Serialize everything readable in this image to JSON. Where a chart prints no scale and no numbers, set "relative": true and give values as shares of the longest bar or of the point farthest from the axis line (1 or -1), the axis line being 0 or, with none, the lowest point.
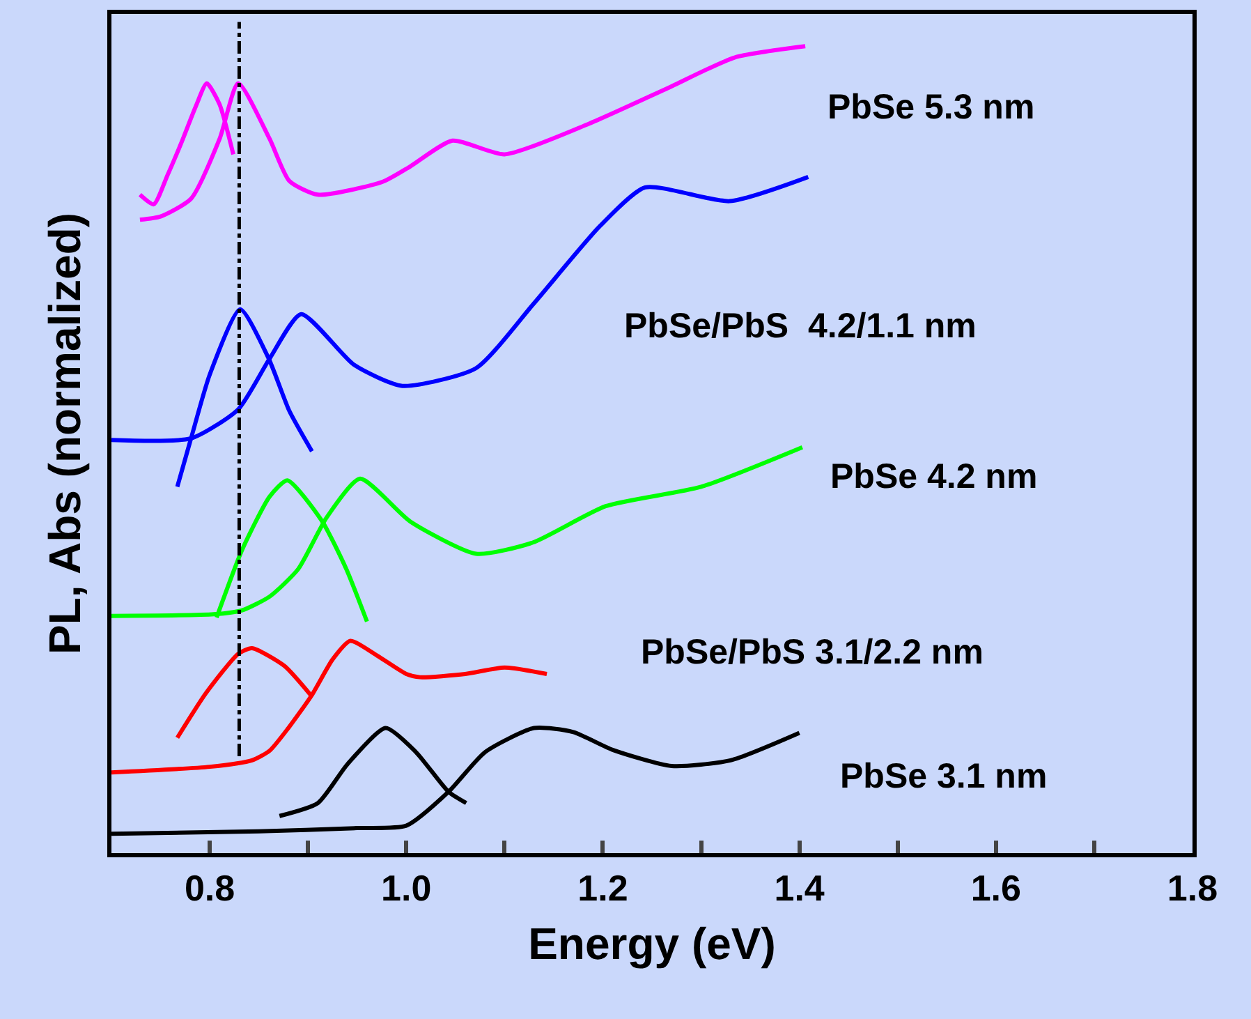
{
  "chart_data": {
    "type": "line",
    "relative": true,
    "xlabel": "Energy (eV)",
    "ylabel": "PL, Abs (normalized)",
    "xlim": [
      0.7,
      1.8
    ],
    "xticks": [
      {
        "value": 0.7,
        "label": null
      },
      0.8,
      {
        "value": 0.9,
        "label": null
      },
      {
        "value": 1.0,
        "label": "1.0"
      },
      {
        "value": 1.1,
        "label": null
      },
      1.2,
      {
        "value": 1.3,
        "label": null
      },
      1.4,
      {
        "value": 1.5,
        "label": null
      },
      1.6,
      {
        "value": 1.7,
        "label": null
      },
      1.8
    ],
    "tick_labels": "x",
    "marker": "none",
    "line_style": "solid",
    "series": [
      {
        "color": "#000000",
        "x": [
          0.7,
          0.85,
          0.95,
          1.0,
          1.043,
          1.08,
          1.13,
          1.17,
          1.21,
          1.27,
          1.33,
          1.4
        ],
        "values": [
          0.024,
          0.027,
          0.031,
          0.034,
          0.076,
          0.125,
          0.155,
          0.15,
          0.128,
          0.108,
          0.115,
          0.149
        ]
      },
      {
        "color": "#000000",
        "x": [
          0.871,
          0.91,
          0.94,
          0.979,
          1.01,
          1.043,
          1.061
        ],
        "values": [
          0.046,
          0.062,
          0.11,
          0.155,
          0.125,
          0.076,
          0.062
        ]
      },
      {
        "color": "#ff0000",
        "x": [
          0.7,
          0.8,
          0.843,
          0.861,
          0.88,
          0.904,
          0.925,
          0.943,
          0.97,
          1.0,
          1.014,
          1.06,
          1.1,
          1.143
        ],
        "values": [
          0.1,
          0.107,
          0.115,
          0.127,
          0.155,
          0.196,
          0.24,
          0.263,
          0.245,
          0.222,
          0.218,
          0.222,
          0.23,
          0.222
        ]
      },
      {
        "color": "#ff0000",
        "x": [
          0.767,
          0.796,
          0.829,
          0.843,
          0.876,
          0.904
        ],
        "values": [
          0.143,
          0.198,
          0.247,
          0.254,
          0.232,
          0.194
        ]
      },
      {
        "color": "#00ff00",
        "x": [
          0.7,
          0.804,
          0.833,
          0.861,
          0.89,
          0.919,
          0.953,
          1.004,
          1.071,
          1.129,
          1.203,
          1.3,
          1.403
        ],
        "values": [
          0.294,
          0.296,
          0.301,
          0.318,
          0.352,
          0.416,
          0.464,
          0.411,
          0.371,
          0.385,
          0.43,
          0.454,
          0.503
        ]
      },
      {
        "color": "#00ff00",
        "x": [
          0.807,
          0.833,
          0.861,
          0.879,
          0.914,
          0.939,
          0.96
        ],
        "values": [
          0.292,
          0.376,
          0.442,
          0.462,
          0.412,
          0.352,
          0.287
        ]
      },
      {
        "color": "#0000ff",
        "x": [
          0.7,
          0.781,
          0.829,
          0.861,
          0.893,
          0.947,
          0.996,
          1.071,
          1.129,
          1.197,
          1.243,
          1.329,
          1.409
        ],
        "values": [
          0.512,
          0.514,
          0.55,
          0.613,
          0.668,
          0.605,
          0.579,
          0.601,
          0.68,
          0.777,
          0.825,
          0.808,
          0.838
        ]
      },
      {
        "color": "#0000ff",
        "x": [
          0.767,
          0.781,
          0.8,
          0.831,
          0.86,
          0.881,
          0.904
        ],
        "values": [
          0.454,
          0.514,
          0.593,
          0.674,
          0.613,
          0.548,
          0.498
        ]
      },
      {
        "color": "#ff00ff",
        "x": [
          0.729,
          0.75,
          0.781,
          0.81,
          0.829,
          0.861,
          0.881,
          0.91,
          0.976,
          1.004,
          1.047,
          1.1,
          1.186,
          1.266,
          1.334,
          1.406
        ],
        "values": [
          0.785,
          0.789,
          0.811,
          0.885,
          0.954,
          0.885,
          0.833,
          0.816,
          0.832,
          0.851,
          0.883,
          0.866,
          0.904,
          0.948,
          0.986,
          1.0
        ]
      },
      {
        "color": "#ff00ff",
        "x": [
          0.729,
          0.743,
          0.757,
          0.771,
          0.786,
          0.797,
          0.81,
          0.824
        ],
        "values": [
          0.816,
          0.804,
          0.84,
          0.88,
          0.926,
          0.954,
          0.928,
          0.866
        ]
      }
    ],
    "ref_lines": [
      {
        "axis": "x",
        "value": 0.83,
        "color": "#000000",
        "line_style": "dashdot"
      }
    ],
    "annotations": [
      "PbSe 5.3 nm",
      "PbSe/PbS  4.2/1.1 nm",
      "PbSe 4.2 nm",
      "PbSe/PbS 3.1/2.2 nm",
      "PbSe 3.1 nm"
    ]
  }
}
